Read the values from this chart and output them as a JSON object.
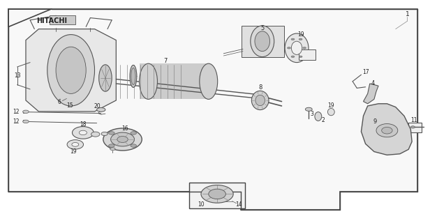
{
  "title": "HITACHI",
  "bg_color": "#ffffff",
  "line_color": "#555555",
  "text_color": "#222222",
  "border_color": "#444444",
  "fig_width": 6.16,
  "fig_height": 3.2,
  "dpi": 100
}
